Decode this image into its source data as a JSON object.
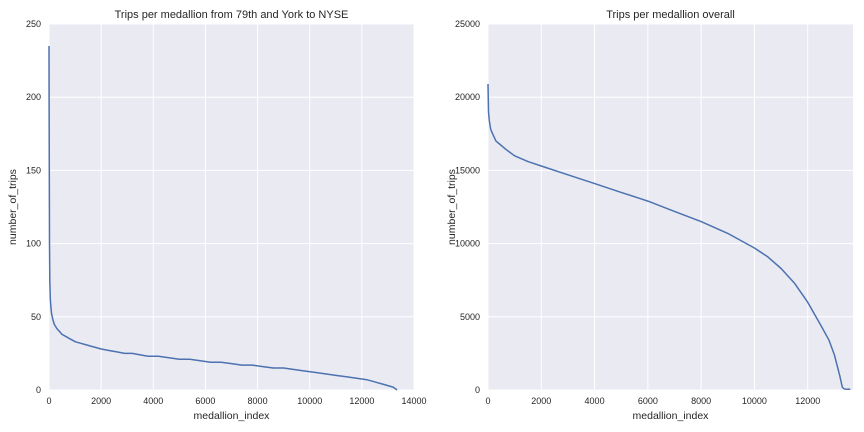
{
  "chart_data": [
    {
      "type": "line",
      "title": "Trips per medallion from 79th and York to NYSE",
      "xlabel": "medallion_index",
      "ylabel": "number_of_trips",
      "xlim": [
        0,
        14000
      ],
      "ylim": [
        0,
        250
      ],
      "xticks": [
        "0",
        "2000",
        "4000",
        "6000",
        "8000",
        "10000",
        "12000",
        "14000"
      ],
      "yticks": [
        "0",
        "50",
        "100",
        "150",
        "200",
        "250"
      ],
      "grid": true,
      "line_color": "#4c72b0",
      "background": "#eaeaf2",
      "series": [
        {
          "x": [
            0,
            5,
            10,
            20,
            30,
            50,
            75,
            100,
            150,
            200,
            300,
            400,
            500,
            600,
            700,
            800,
            900,
            1000,
            1200,
            1400,
            1600,
            1800,
            2000,
            2300,
            2600,
            2900,
            3200,
            3500,
            3800,
            4200,
            4600,
            5000,
            5400,
            5800,
            6200,
            6600,
            7000,
            7400,
            7800,
            8200,
            8600,
            9000,
            9400,
            9800,
            10200,
            10600,
            11000,
            11400,
            11800,
            12200,
            12400,
            12600,
            12800,
            13000,
            13200,
            13350
          ],
          "y": [
            235,
            200,
            150,
            100,
            75,
            62,
            56,
            52,
            48,
            45,
            42,
            40,
            38,
            37,
            36,
            35,
            34,
            33,
            32,
            31,
            30,
            29,
            28,
            27,
            26,
            25,
            25,
            24,
            23,
            23,
            22,
            21,
            21,
            20,
            19,
            19,
            18,
            17,
            17,
            16,
            15,
            15,
            14,
            13,
            12,
            11,
            10,
            9,
            8,
            7,
            6,
            5,
            4,
            3,
            2,
            0
          ]
        }
      ]
    },
    {
      "type": "line",
      "title": "Trips per medallion overall",
      "xlabel": "medallion_index",
      "ylabel": "number_of_trips",
      "xlim": [
        0,
        13700
      ],
      "ylim": [
        0,
        25000
      ],
      "xticks": [
        "0",
        "2000",
        "4000",
        "6000",
        "8000",
        "10000",
        "12000"
      ],
      "xtick_values": [
        0,
        2000,
        4000,
        6000,
        8000,
        10000,
        12000
      ],
      "yticks": [
        "0",
        "5000",
        "10000",
        "15000",
        "20000",
        "25000"
      ],
      "grid": true,
      "line_color": "#4c72b0",
      "background": "#eaeaf2",
      "series": [
        {
          "x": [
            0,
            20,
            50,
            100,
            200,
            300,
            500,
            700,
            1000,
            1500,
            2000,
            3000,
            4000,
            5000,
            6000,
            7000,
            8000,
            9000,
            10000,
            10500,
            11000,
            11500,
            12000,
            12500,
            12800,
            13000,
            13200,
            13300,
            13350,
            13400,
            13500,
            13600
          ],
          "y": [
            20900,
            19000,
            18400,
            17800,
            17400,
            17000,
            16700,
            16400,
            16000,
            15600,
            15300,
            14700,
            14100,
            13500,
            12900,
            12200,
            11500,
            10700,
            9700,
            9100,
            8300,
            7300,
            6000,
            4400,
            3400,
            2400,
            1000,
            200,
            100,
            60,
            50,
            50
          ]
        }
      ]
    }
  ]
}
